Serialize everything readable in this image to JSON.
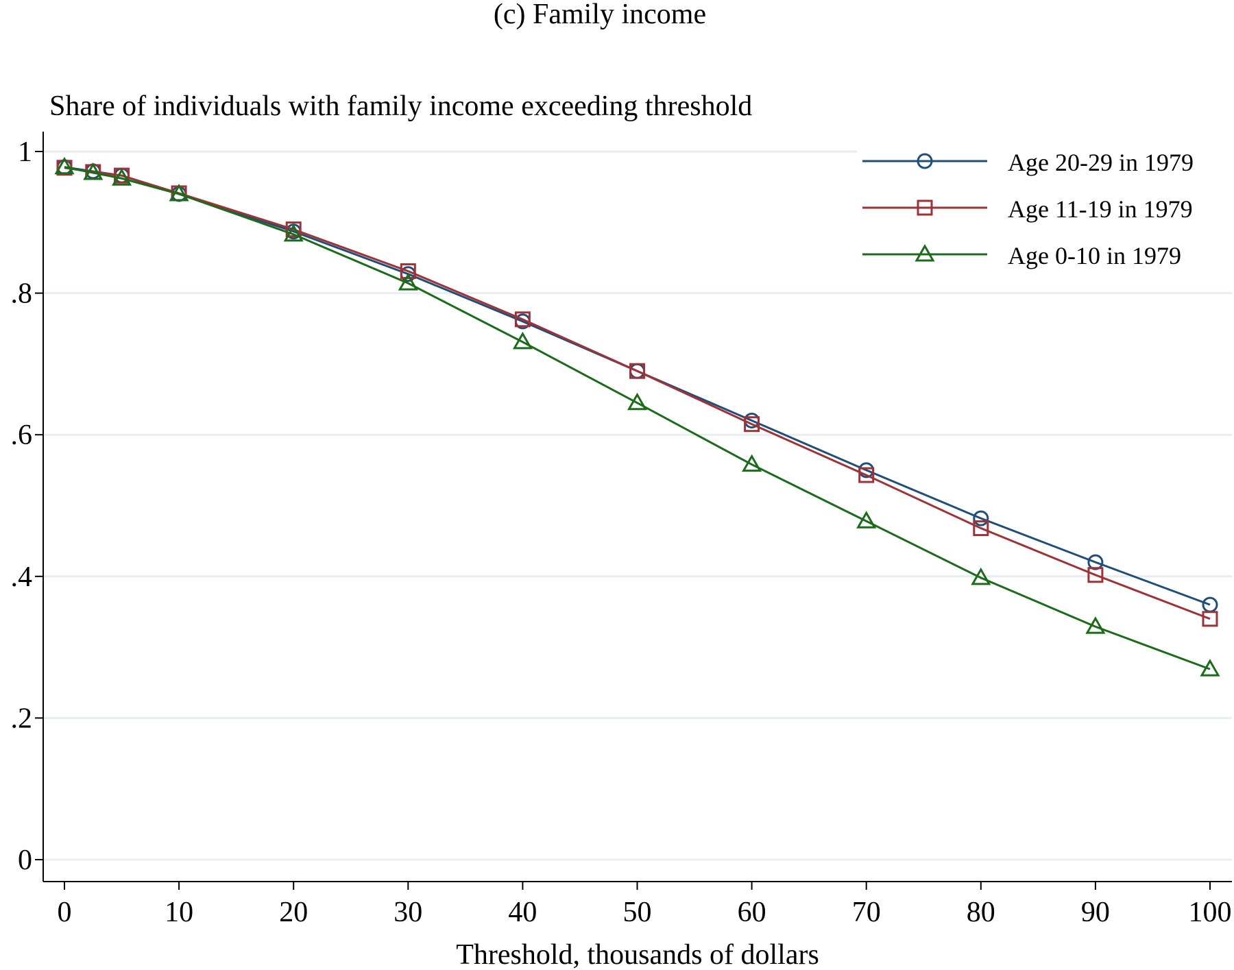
{
  "chart_data": {
    "type": "line",
    "title": "(c) Family income",
    "subtitle": "Share of individuals with family income exceeding threshold",
    "xlabel": "Threshold, thousands of dollars",
    "ylabel": "",
    "xlim": [
      0,
      100
    ],
    "ylim": [
      0,
      1
    ],
    "x_ticks": [
      0,
      10,
      20,
      30,
      40,
      50,
      60,
      70,
      80,
      90,
      100
    ],
    "x_tick_labels": [
      "0",
      "10",
      "20",
      "30",
      "40",
      "50",
      "60",
      "70",
      "80",
      "90",
      "100"
    ],
    "y_ticks": [
      0,
      0.2,
      0.4,
      0.6,
      0.8,
      1
    ],
    "y_tick_labels": [
      "0",
      ".2",
      ".4",
      ".6",
      ".8",
      "1"
    ],
    "grid": true,
    "legend_position": "top-right",
    "x": [
      0,
      2.5,
      5,
      10,
      20,
      30,
      40,
      50,
      60,
      70,
      80,
      90,
      100
    ],
    "series": [
      {
        "name": "Age 20-29 in 1979",
        "marker": "circle",
        "color": "#1f4e79",
        "values": [
          0.978,
          0.972,
          0.966,
          0.94,
          0.887,
          0.827,
          0.76,
          0.69,
          0.62,
          0.55,
          0.482,
          0.42,
          0.36
        ]
      },
      {
        "name": "Age 11-19 in 1979",
        "marker": "square",
        "color": "#9e3237",
        "values": [
          0.977,
          0.971,
          0.966,
          0.941,
          0.89,
          0.831,
          0.763,
          0.69,
          0.615,
          0.543,
          0.468,
          0.402,
          0.34
        ]
      },
      {
        "name": "Age 0-10 in 1979",
        "marker": "triangle",
        "color": "#1b6b1b",
        "values": [
          0.978,
          0.97,
          0.962,
          0.94,
          0.883,
          0.814,
          0.731,
          0.645,
          0.558,
          0.478,
          0.398,
          0.329,
          0.269
        ]
      }
    ]
  }
}
